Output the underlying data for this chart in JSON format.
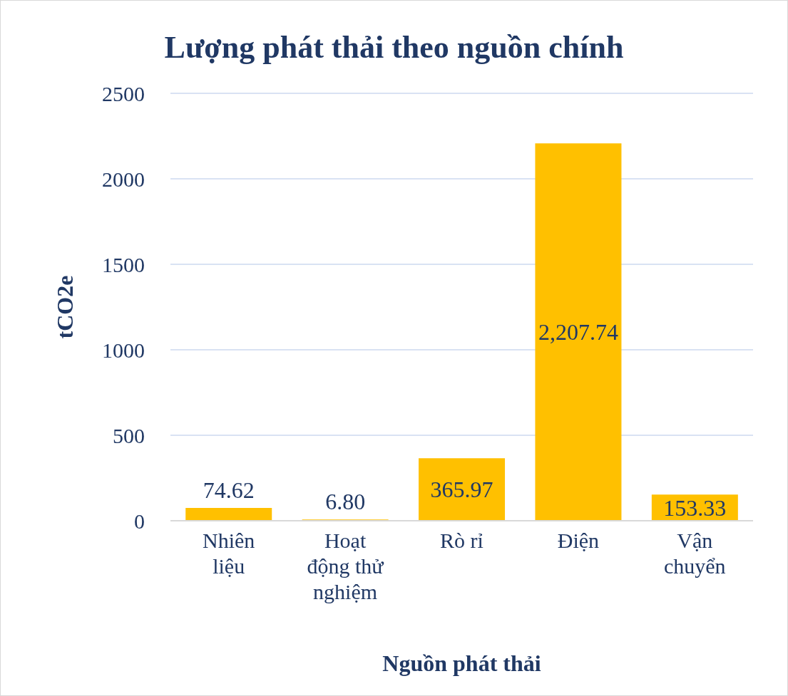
{
  "chart_data": {
    "type": "bar",
    "title": "Lượng phát thải theo nguồn chính",
    "xlabel": "Nguồn phát thải",
    "ylabel": "tCO2e",
    "categories": [
      "Nhiên liệu",
      "Hoạt động thử nghiệm",
      "Rò rỉ",
      "Điện",
      "Vận chuyển"
    ],
    "values": [
      74.62,
      6.8,
      365.97,
      2207.74,
      153.33
    ],
    "value_labels": [
      "74.62",
      "6.80",
      "365.97",
      "2,207.74",
      "153.33"
    ],
    "color": "#ffc000",
    "ylim": [
      0,
      2500
    ],
    "yticks": [
      0,
      500,
      1000,
      1500,
      2000,
      2500
    ],
    "grid": "y"
  }
}
